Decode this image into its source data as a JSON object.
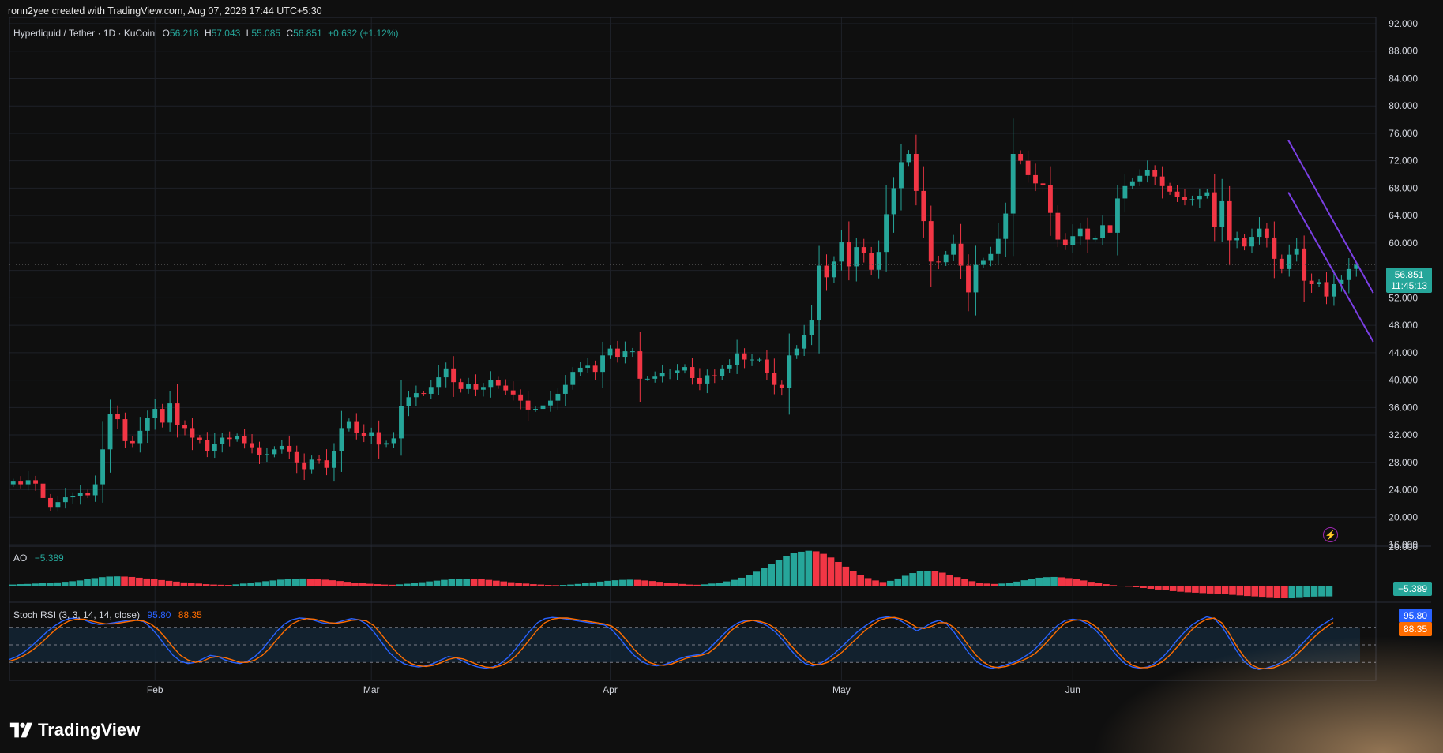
{
  "header": {
    "caption": "ronn2yee created with TradingView.com, Aug 07, 2026 17:44 UTC+5:30"
  },
  "legend": {
    "symbol": "Hyperliquid / Tether · 1D · KuCoin",
    "o_label": "O",
    "o_value": "56.218",
    "h_label": "H",
    "h_value": "57.043",
    "l_label": "L",
    "l_value": "55.085",
    "c_label": "C",
    "c_value": "56.851",
    "change": "+0.632 (+1.12%)"
  },
  "ao_legend": {
    "name": "AO",
    "value": "−5.389"
  },
  "stoch_legend": {
    "name": "Stoch RSI (3, 3, 14, 14, close)",
    "k_value": "95.80",
    "d_value": "88.35"
  },
  "price_tags": {
    "last_price": "56.851",
    "countdown": "11:45:13",
    "ao_value": "−5.389",
    "stoch_k": "95.80",
    "stoch_d": "88.35"
  },
  "logo_text": "TradingView",
  "colors": {
    "up": "#26a69a",
    "down": "#f23645",
    "channel": "#7b3fe4",
    "stoch_k": "#2962ff",
    "stoch_d": "#ff6d00",
    "background": "#0f0f0f"
  },
  "chart_data": [
    {
      "type": "candlestick",
      "title": "Hyperliquid / Tether · 1D · KuCoin",
      "y_axis_ticks": [
        92,
        88,
        84,
        80,
        76,
        72,
        68,
        64,
        60,
        56,
        52,
        48,
        44,
        40,
        36,
        32,
        28,
        24,
        20,
        16
      ],
      "y_axis_labels": [
        "92.000",
        "88.000",
        "84.000",
        "80.000",
        "76.000",
        "72.000",
        "68.000",
        "64.000",
        "60.000",
        "",
        "52.000",
        "48.000",
        "44.000",
        "40.000",
        "36.000",
        "32.000",
        "28.000",
        "24.000",
        "20.000",
        "16.000"
      ],
      "ylim": [
        16,
        92
      ],
      "x_axis_labels": [
        "Feb",
        "Mar",
        "Apr",
        "May",
        "Jun"
      ],
      "x_axis_label_index": [
        19,
        48,
        80,
        111,
        142
      ],
      "closes": [
        25.2,
        24.8,
        25.4,
        24.9,
        22.8,
        21.5,
        22.2,
        22.9,
        23.1,
        23.6,
        23.2,
        24.8,
        29.9,
        35.1,
        34.3,
        31.1,
        30.8,
        32.6,
        34.5,
        35.8,
        33.8,
        36.6,
        33.5,
        33.0,
        31.6,
        31.2,
        29.7,
        30.7,
        31.6,
        31.4,
        31.8,
        30.8,
        30.2,
        29.1,
        29.2,
        29.9,
        30.4,
        29.5,
        28.0,
        27.0,
        28.4,
        28.3,
        27.2,
        29.6,
        33.0,
        33.9,
        32.3,
        31.8,
        32.4,
        30.6,
        30.8,
        31.5,
        36.2,
        37.5,
        38.1,
        38.0,
        39.0,
        40.4,
        41.7,
        39.7,
        38.7,
        39.4,
        38.6,
        39.0,
        40.0,
        39.2,
        38.5,
        37.9,
        37.0,
        35.7,
        35.8,
        36.3,
        37.0,
        38.0,
        39.3,
        41.2,
        41.8,
        42.1,
        41.2,
        43.6,
        44.6,
        43.4,
        44.2,
        44.2,
        40.2,
        40.2,
        40.5,
        41.0,
        41.1,
        41.4,
        41.9,
        40.3,
        39.5,
        40.7,
        40.6,
        41.7,
        42.2,
        43.9,
        43.0,
        43.0,
        43.0,
        41.1,
        39.3,
        38.8,
        43.6,
        44.6,
        46.6,
        48.7,
        56.7,
        55.0,
        57.3,
        60.1,
        56.6,
        59.4,
        58.6,
        56.1,
        58.7,
        64.2,
        68.0,
        71.8,
        73.0,
        67.6,
        63.2,
        57.3,
        57.2,
        58.3,
        59.9,
        56.7,
        52.8,
        56.8,
        57.4,
        58.4,
        60.6,
        64.3,
        73.0,
        72.0,
        69.9,
        68.7,
        68.4,
        64.4,
        60.5,
        59.7,
        61.0,
        62.1,
        60.5,
        60.7,
        62.6,
        61.5,
        66.5,
        68.3,
        69.0,
        69.8,
        70.6,
        69.7,
        68.3,
        67.5,
        66.7,
        66.3,
        66.4,
        66.9,
        67.4,
        62.3,
        66.1,
        60.4,
        60.7,
        59.5,
        60.9,
        62.1,
        60.8,
        57.7,
        56.2,
        58.3,
        59.2,
        54.5,
        54.0,
        54.3,
        52.2,
        54.0,
        54.6,
        56.2,
        56.9
      ],
      "ohlc_note": "Daily candles; open of each candle ≈ previous close; last candle O 56.218 H 57.043 L 55.085 C 56.851",
      "last_price": 56.851,
      "channel": {
        "upper": [
          [
            173,
            75.0
          ],
          [
            181,
            52.7
          ]
        ],
        "lower": [
          [
            173,
            67.4
          ],
          [
            181,
            45.6
          ]
        ]
      }
    },
    {
      "type": "bar",
      "title": "AO",
      "ylim": [
        -8,
        20
      ],
      "y_axis_labels": [
        "20.000",
        "0.000"
      ],
      "value_at_last": -5.389,
      "values": [
        0.7,
        0.9,
        1.0,
        1.2,
        1.4,
        1.6,
        1.8,
        2.1,
        2.4,
        2.8,
        3.4,
        4.0,
        4.5,
        4.8,
        4.9,
        4.8,
        4.6,
        4.2,
        3.8,
        3.4,
        3.0,
        2.6,
        2.2,
        1.8,
        1.5,
        1.2,
        0.9,
        0.7,
        0.6,
        0.5,
        0.8,
        1.2,
        1.6,
        2.0,
        2.4,
        2.8,
        3.2,
        3.5,
        3.7,
        3.8,
        3.7,
        3.5,
        3.2,
        2.9,
        2.5,
        2.1,
        1.7,
        1.4,
        1.1,
        0.9,
        0.7,
        0.6,
        0.8,
        1.1,
        1.5,
        1.9,
        2.3,
        2.7,
        3.1,
        3.4,
        3.6,
        3.7,
        3.6,
        3.4,
        3.1,
        2.7,
        2.3,
        1.9,
        1.5,
        1.2,
        0.9,
        0.7,
        0.5,
        0.4,
        0.5,
        0.7,
        1.0,
        1.4,
        1.8,
        2.2,
        2.6,
        2.9,
        3.1,
        3.2,
        3.1,
        2.8,
        2.5,
        2.1,
        1.7,
        1.3,
        1.0,
        0.7,
        0.6,
        0.8,
        1.2,
        1.7,
        2.3,
        3.1,
        4.2,
        5.6,
        7.3,
        9.2,
        11.3,
        13.4,
        15.4,
        16.8,
        17.6,
        18.1,
        17.8,
        16.5,
        14.6,
        12.3,
        9.9,
        7.6,
        5.6,
        4.0,
        2.8,
        2.0,
        2.6,
        3.8,
        5.2,
        6.6,
        7.5,
        7.8,
        7.6,
        6.8,
        5.7,
        4.5,
        3.4,
        2.4,
        1.6,
        1.2,
        1.0,
        1.2,
        1.6,
        2.2,
        2.9,
        3.6,
        4.2,
        4.5,
        4.6,
        4.4,
        4.0,
        3.4,
        2.8,
        2.1,
        1.5,
        0.9,
        0.4,
        0.1,
        -0.3,
        -0.7,
        -1.1,
        -1.5,
        -1.9,
        -2.3,
        -2.7,
        -3.0,
        -3.3,
        -3.5,
        -3.7,
        -3.9,
        -4.1,
        -4.3,
        -4.6,
        -4.9,
        -5.2,
        -5.4,
        -5.6,
        -5.8,
        -6.0,
        -6.1,
        -6.0,
        -5.8,
        -5.6,
        -5.5,
        -5.4,
        -5.389
      ]
    },
    {
      "type": "line",
      "title": "Stoch RSI (3, 3, 14, 14, close)",
      "ylim": [
        0,
        100
      ],
      "bands": [
        80,
        50,
        20
      ],
      "series": [
        {
          "name": "K",
          "last_value": 95.8,
          "values": [
            25,
            30,
            38,
            48,
            60,
            72,
            82,
            90,
            95,
            96,
            93,
            88,
            85,
            86,
            88,
            90,
            92,
            93,
            90,
            80,
            65,
            48,
            32,
            22,
            18,
            20,
            26,
            32,
            30,
            24,
            20,
            18,
            22,
            30,
            42,
            58,
            74,
            86,
            93,
            96,
            95,
            92,
            88,
            86,
            88,
            92,
            95,
            93,
            86,
            72,
            55,
            38,
            26,
            18,
            14,
            12,
            14,
            18,
            24,
            30,
            28,
            22,
            16,
            12,
            10,
            12,
            18,
            28,
            42,
            58,
            74,
            88,
            95,
            97,
            96,
            94,
            92,
            90,
            88,
            86,
            84,
            76,
            62,
            46,
            32,
            22,
            16,
            14,
            16,
            20,
            26,
            30,
            32,
            34,
            42,
            55,
            68,
            80,
            88,
            92,
            92,
            88,
            82,
            72,
            58,
            42,
            28,
            18,
            14,
            18,
            26,
            36,
            48,
            60,
            72,
            82,
            90,
            96,
            98,
            96,
            90,
            82,
            74,
            80,
            88,
            92,
            86,
            72,
            54,
            36,
            22,
            14,
            10,
            12,
            16,
            20,
            26,
            34,
            44,
            58,
            72,
            84,
            92,
            94,
            92,
            86,
            76,
            62,
            46,
            30,
            18,
            12,
            10,
            12,
            18,
            28,
            42,
            58,
            72,
            84,
            92,
            98,
            95,
            82,
            62,
            40,
            22,
            12,
            8,
            10,
            14,
            20,
            28,
            40,
            54,
            68,
            80,
            88,
            95.8
          ]
        },
        {
          "name": "D",
          "last_value": 88.35,
          "values": [
            22,
            26,
            32,
            40,
            50,
            62,
            74,
            84,
            91,
            94,
            94,
            91,
            88,
            86,
            86,
            88,
            90,
            92,
            91,
            86,
            76,
            62,
            46,
            32,
            24,
            20,
            22,
            28,
            30,
            28,
            24,
            20,
            20,
            24,
            32,
            44,
            60,
            74,
            86,
            92,
            95,
            94,
            91,
            88,
            87,
            89,
            92,
            93,
            91,
            83,
            68,
            52,
            38,
            26,
            18,
            14,
            13,
            15,
            19,
            25,
            28,
            26,
            21,
            16,
            12,
            11,
            14,
            20,
            30,
            44,
            60,
            76,
            88,
            94,
            96,
            96,
            94,
            92,
            90,
            88,
            86,
            82,
            72,
            58,
            42,
            30,
            20,
            16,
            15,
            17,
            22,
            27,
            30,
            32,
            36,
            46,
            60,
            74,
            84,
            90,
            92,
            90,
            86,
            78,
            66,
            50,
            36,
            24,
            17,
            16,
            20,
            28,
            38,
            50,
            62,
            74,
            84,
            92,
            96,
            97,
            94,
            88,
            80,
            78,
            82,
            88,
            88,
            80,
            66,
            48,
            32,
            20,
            13,
            11,
            13,
            17,
            22,
            28,
            36,
            48,
            62,
            76,
            88,
            92,
            93,
            90,
            82,
            70,
            54,
            38,
            24,
            15,
            11,
            11,
            14,
            21,
            32,
            46,
            62,
            76,
            87,
            94,
            96,
            88,
            70,
            48,
            30,
            16,
            10,
            9,
            11,
            16,
            22,
            32,
            44,
            58,
            70,
            80,
            88.35
          ]
        }
      ]
    }
  ]
}
